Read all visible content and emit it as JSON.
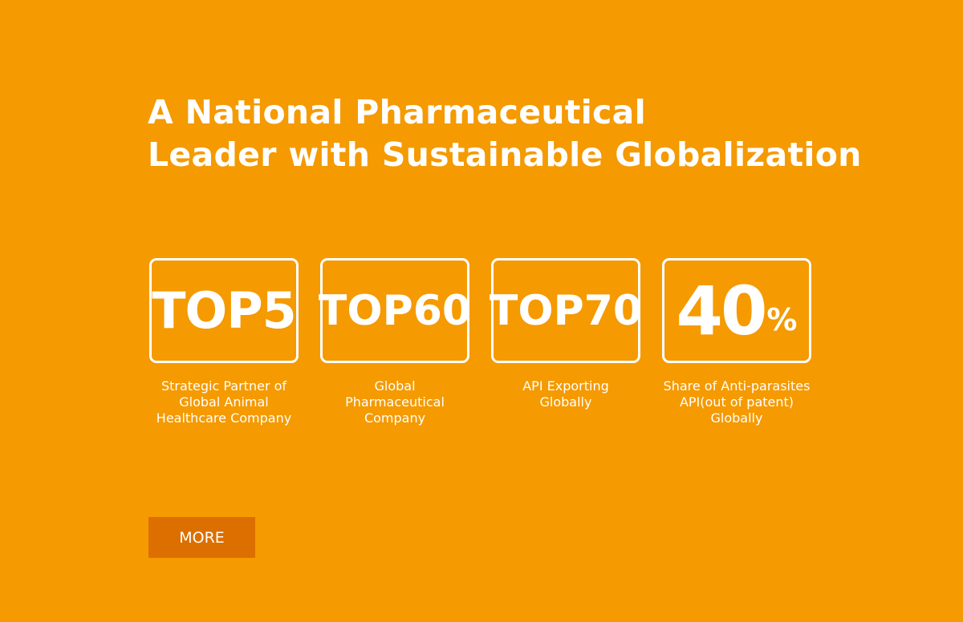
{
  "colors": {
    "background": "#f59a00",
    "button": "#dc6f00",
    "text": "#ffffff"
  },
  "title": {
    "line1": "A National Pharmaceutical",
    "line2": "Leader with Sustainable Globalization"
  },
  "stats": [
    {
      "value": "TOP5",
      "unit": "",
      "caption": [
        "Strategic Partner of",
        "Global Animal",
        "Healthcare Company"
      ]
    },
    {
      "value": "TOP60",
      "unit": "",
      "caption": [
        "Global",
        "Pharmaceutical",
        "Company"
      ]
    },
    {
      "value": "TOP70",
      "unit": "",
      "caption": [
        "API Exporting",
        "Globally"
      ]
    },
    {
      "value": "40",
      "unit": "%",
      "caption": [
        "Share of Anti-parasites",
        "API(out of patent)",
        "Globally"
      ]
    }
  ],
  "more_label": "MORE"
}
